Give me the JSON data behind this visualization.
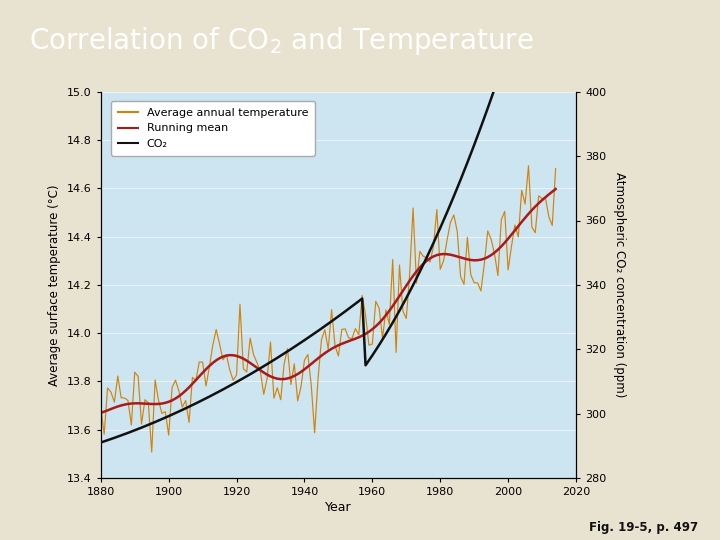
{
  "title_bg": "#2e4d7b",
  "title_color": "#ffffff",
  "fig_bg": "#e8e2d0",
  "plot_bg": "#cce5f0",
  "xlabel": "Year",
  "ylabel_left": "Average surface temperature (°C)",
  "ylabel_right": "Atmospheric CO₂ concentration (ppm)",
  "xlim": [
    1880,
    2020
  ],
  "ylim_left": [
    13.4,
    15.0
  ],
  "ylim_right": [
    280,
    400
  ],
  "xticks": [
    1880,
    1900,
    1920,
    1940,
    1960,
    1980,
    2000,
    2020
  ],
  "yticks_left": [
    13.4,
    13.6,
    13.8,
    14.0,
    14.2,
    14.4,
    14.6,
    14.8,
    15.0
  ],
  "yticks_right": [
    280,
    300,
    320,
    340,
    360,
    380,
    400
  ],
  "caption": "Fig. 19-5, p. 497",
  "temp_color": "#d4820a",
  "running_mean_color": "#aa1a1a",
  "co2_color": "#111111",
  "legend_labels": [
    "Average annual temperature",
    "Running mean",
    "CO₂"
  ]
}
